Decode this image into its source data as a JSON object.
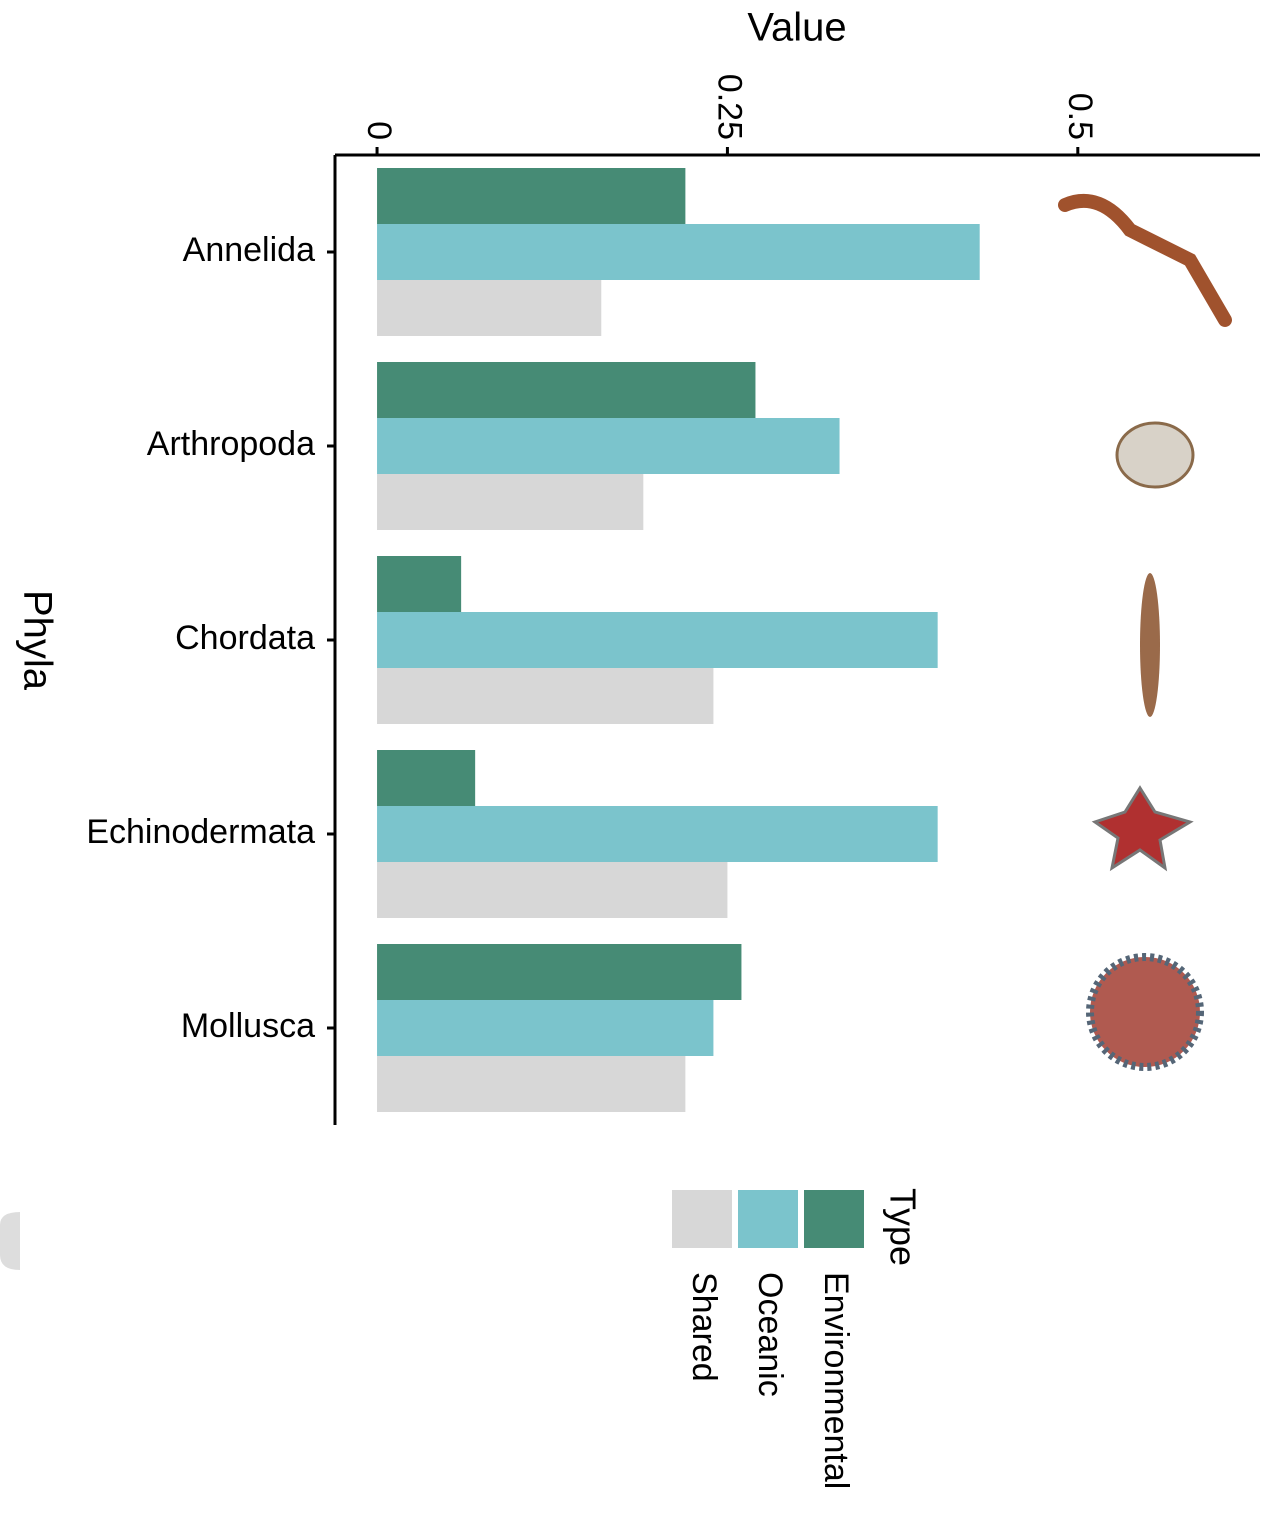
{
  "chart_data": {
    "type": "bar",
    "orientation": "horizontal",
    "x_label": "Value",
    "y_label": "Phyla",
    "legend_title": "Type",
    "categories": [
      "Annelida",
      "Arthropoda",
      "Chordata",
      "Echinodermata",
      "Mollusca"
    ],
    "series": [
      {
        "name": "Environmental",
        "color": "#468b75",
        "values": [
          0.22,
          0.27,
          0.06,
          0.07,
          0.26
        ]
      },
      {
        "name": "Oceanic",
        "color": "#7bc4cc",
        "values": [
          0.43,
          0.33,
          0.4,
          0.4,
          0.24
        ]
      },
      {
        "name": "Shared",
        "color": "#d7d7d7",
        "values": [
          0.16,
          0.19,
          0.24,
          0.25,
          0.22
        ]
      }
    ],
    "xlim": [
      -0.03,
      0.63
    ],
    "xticks": [
      0,
      0.25,
      0.5
    ],
    "grid": false
  }
}
